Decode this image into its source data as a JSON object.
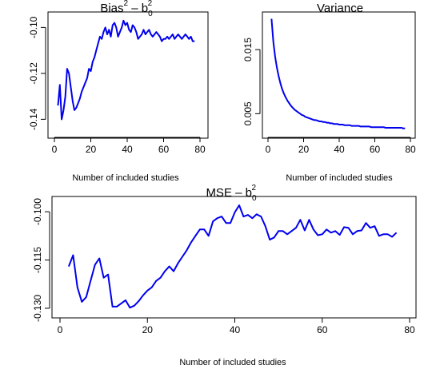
{
  "chart_data": [
    {
      "type": "line",
      "title": {
        "base": "Bias",
        "sup1": "2",
        "mid": " – b",
        "sub": "0",
        "sup2": "2"
      },
      "xlabel": "Number of included studies",
      "ylabel": "",
      "xlim": [
        0,
        80
      ],
      "ylim": [
        -0.143,
        -0.095
      ],
      "xticks": [
        0,
        20,
        40,
        60,
        80
      ],
      "yticks": [
        -0.14,
        -0.12,
        -0.1
      ],
      "xtick_labels": [
        "0",
        "20",
        "40",
        "60",
        "80"
      ],
      "ytick_labels": [
        "-0.14",
        "-0.12",
        "-0.10"
      ],
      "color": "#0000ee",
      "x": [
        2,
        3,
        4,
        5,
        6,
        7,
        8,
        9,
        10,
        11,
        12,
        13,
        14,
        15,
        16,
        17,
        18,
        19,
        20,
        21,
        22,
        23,
        24,
        25,
        26,
        27,
        28,
        29,
        30,
        31,
        32,
        33,
        34,
        35,
        36,
        37,
        38,
        39,
        40,
        41,
        42,
        43,
        44,
        45,
        46,
        47,
        48,
        49,
        50,
        51,
        52,
        53,
        54,
        55,
        56,
        57,
        58,
        59,
        60,
        61,
        62,
        63,
        64,
        65,
        66,
        67,
        68,
        69,
        70,
        71,
        72,
        73,
        74,
        75,
        76,
        77
      ],
      "y": [
        -0.134,
        -0.125,
        -0.14,
        -0.136,
        -0.13,
        -0.118,
        -0.12,
        -0.126,
        -0.132,
        -0.136,
        -0.135,
        -0.133,
        -0.131,
        -0.128,
        -0.126,
        -0.124,
        -0.122,
        -0.118,
        -0.119,
        -0.115,
        -0.113,
        -0.11,
        -0.107,
        -0.104,
        -0.105,
        -0.102,
        -0.1,
        -0.103,
        -0.101,
        -0.104,
        -0.099,
        -0.098,
        -0.1,
        -0.104,
        -0.102,
        -0.1,
        -0.097,
        -0.099,
        -0.098,
        -0.101,
        -0.102,
        -0.099,
        -0.1,
        -0.102,
        -0.105,
        -0.104,
        -0.103,
        -0.101,
        -0.103,
        -0.102,
        -0.101,
        -0.103,
        -0.104,
        -0.103,
        -0.102,
        -0.103,
        -0.104,
        -0.106,
        -0.105,
        -0.105,
        -0.104,
        -0.105,
        -0.104,
        -0.103,
        -0.105,
        -0.104,
        -0.103,
        -0.104,
        -0.105,
        -0.104,
        -0.103,
        -0.104,
        -0.105,
        -0.104,
        -0.106,
        -0.106
      ]
    },
    {
      "type": "line",
      "title": {
        "text": "Variance"
      },
      "xlabel": "Number of included studies",
      "ylabel": "",
      "xlim": [
        0,
        80
      ],
      "ylim": [
        0.0018,
        0.0205
      ],
      "xticks": [
        0,
        20,
        40,
        60,
        80
      ],
      "yticks": [
        0.005,
        0.015
      ],
      "xtick_labels": [
        "0",
        "20",
        "40",
        "60",
        "80"
      ],
      "ytick_labels": [
        "0.005",
        "0.015"
      ],
      "color": "#0000ee",
      "x": [
        2,
        3,
        4,
        5,
        6,
        7,
        8,
        9,
        10,
        11,
        12,
        13,
        14,
        15,
        16,
        17,
        18,
        19,
        20,
        21,
        22,
        23,
        24,
        25,
        26,
        27,
        28,
        29,
        30,
        31,
        32,
        33,
        34,
        35,
        36,
        37,
        38,
        39,
        40,
        41,
        42,
        43,
        44,
        45,
        46,
        47,
        48,
        49,
        50,
        51,
        52,
        53,
        54,
        55,
        56,
        57,
        58,
        59,
        60,
        61,
        62,
        63,
        64,
        65,
        66,
        67,
        68,
        69,
        70,
        71,
        72,
        73,
        74,
        75,
        76,
        77
      ],
      "y": [
        0.0198,
        0.0162,
        0.0139,
        0.0122,
        0.0108,
        0.0097,
        0.0088,
        0.0081,
        0.0075,
        0.007,
        0.0066,
        0.0062,
        0.0059,
        0.0056,
        0.0054,
        0.0052,
        0.005,
        0.0048,
        0.0047,
        0.0045,
        0.0044,
        0.0043,
        0.0042,
        0.0041,
        0.004,
        0.004,
        0.0039,
        0.0038,
        0.0038,
        0.0037,
        0.0037,
        0.0036,
        0.0036,
        0.0035,
        0.0035,
        0.0034,
        0.0034,
        0.0034,
        0.0033,
        0.0033,
        0.0033,
        0.0032,
        0.0032,
        0.0032,
        0.0032,
        0.0031,
        0.0031,
        0.0031,
        0.0031,
        0.0031,
        0.003,
        0.003,
        0.003,
        0.003,
        0.003,
        0.003,
        0.0029,
        0.0029,
        0.0029,
        0.0029,
        0.0029,
        0.0029,
        0.0029,
        0.0029,
        0.0028,
        0.0028,
        0.0028,
        0.0028,
        0.0028,
        0.0028,
        0.0028,
        0.0028,
        0.0028,
        0.0028,
        0.0027,
        0.0027
      ]
    },
    {
      "type": "line",
      "title": {
        "base": "MSE",
        "sup1": "",
        "mid": " – b",
        "sub": "0",
        "sup2": "2"
      },
      "xlabel": "Number of included studies",
      "ylabel": "",
      "xlim": [
        0,
        80
      ],
      "ylim": [
        -0.1315,
        -0.0965
      ],
      "xticks": [
        0,
        20,
        40,
        60,
        80
      ],
      "yticks": [
        -0.13,
        -0.115,
        -0.1
      ],
      "xtick_labels": [
        "0",
        "20",
        "40",
        "60",
        "80"
      ],
      "ytick_labels": [
        "-0.130",
        "-0.115",
        "-0.100"
      ],
      "color": "#0000ee",
      "x": [
        2,
        3,
        4,
        5,
        6,
        7,
        8,
        9,
        10,
        11,
        12,
        13,
        14,
        15,
        16,
        17,
        18,
        19,
        20,
        21,
        22,
        23,
        24,
        25,
        26,
        27,
        28,
        29,
        30,
        31,
        32,
        33,
        34,
        35,
        36,
        37,
        38,
        39,
        40,
        41,
        42,
        43,
        44,
        45,
        46,
        47,
        48,
        49,
        50,
        51,
        52,
        53,
        54,
        55,
        56,
        57,
        58,
        59,
        60,
        61,
        62,
        63,
        64,
        65,
        66,
        67,
        68,
        69,
        70,
        71,
        72,
        73,
        74,
        75,
        76,
        77
      ],
      "y": [
        -0.117,
        -0.1135,
        -0.1235,
        -0.128,
        -0.1265,
        -0.1215,
        -0.1165,
        -0.1145,
        -0.1205,
        -0.1195,
        -0.1295,
        -0.1295,
        -0.1285,
        -0.1275,
        -0.1298,
        -0.1292,
        -0.1278,
        -0.126,
        -0.1245,
        -0.1235,
        -0.1215,
        -0.1205,
        -0.1185,
        -0.117,
        -0.1185,
        -0.116,
        -0.114,
        -0.112,
        -0.1095,
        -0.1075,
        -0.1055,
        -0.1055,
        -0.1075,
        -0.103,
        -0.102,
        -0.1015,
        -0.1035,
        -0.1035,
        -0.1002,
        -0.098,
        -0.1015,
        -0.101,
        -0.102,
        -0.1008,
        -0.1015,
        -0.1045,
        -0.1087,
        -0.108,
        -0.106,
        -0.106,
        -0.107,
        -0.106,
        -0.105,
        -0.1025,
        -0.1058,
        -0.1025,
        -0.1055,
        -0.1073,
        -0.107,
        -0.1055,
        -0.1065,
        -0.106,
        -0.1072,
        -0.1048,
        -0.105,
        -0.107,
        -0.106,
        -0.1058,
        -0.1035,
        -0.105,
        -0.1045,
        -0.1075,
        -0.107,
        -0.107,
        -0.1078,
        -0.1065
      ]
    }
  ]
}
